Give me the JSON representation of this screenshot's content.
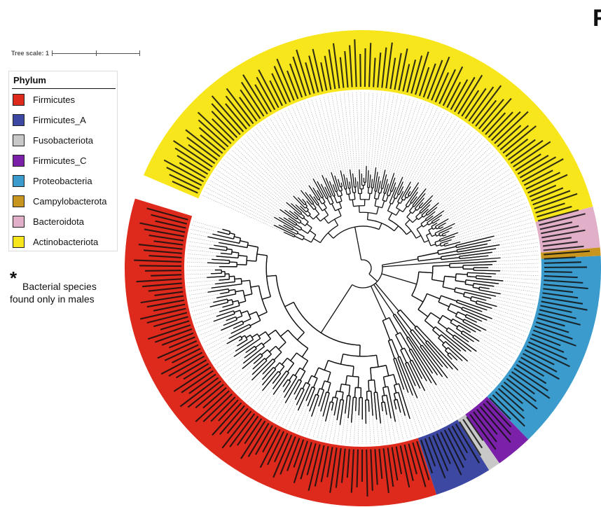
{
  "panel_letter": "F",
  "tree_scale": {
    "label": "Tree scale: 1"
  },
  "legend": {
    "title": "Phylum",
    "items": [
      {
        "label": "Firmicutes",
        "color": "#dd2a1c"
      },
      {
        "label": "Firmicutes_A",
        "color": "#3d48a2"
      },
      {
        "label": "Fusobacteriota",
        "color": "#c8c8c8"
      },
      {
        "label": "Firmicutes_C",
        "color": "#7b20a8"
      },
      {
        "label": "Proteobacteria",
        "color": "#3b9bcc"
      },
      {
        "label": "Campylobacterota",
        "color": "#c8961e"
      },
      {
        "label": "Bacteroidota",
        "color": "#e1b0c8"
      },
      {
        "label": "Actinobacteriota",
        "color": "#f8e61c"
      }
    ]
  },
  "note": {
    "star": "*",
    "line1": "Bacterial species",
    "line2": "found only in males"
  },
  "tree": {
    "sectors": [
      {
        "phylum": "Actinobacteriota",
        "start_deg": -157,
        "end_deg": -15,
        "color": "#f8e61c"
      },
      {
        "phylum": "Bacteroidota",
        "start_deg": -15,
        "end_deg": -5,
        "color": "#e1b0c8"
      },
      {
        "phylum": "Campylobacterota",
        "start_deg": -5,
        "end_deg": -3,
        "color": "#c8961e"
      },
      {
        "phylum": "Proteobacteria",
        "start_deg": -3,
        "end_deg": 46,
        "color": "#3b9bcc"
      },
      {
        "phylum": "Firmicutes_C",
        "start_deg": 46,
        "end_deg": 55,
        "color": "#7b20a8"
      },
      {
        "phylum": "Fusobacteriota",
        "start_deg": 55,
        "end_deg": 58,
        "color": "#c8c8c8"
      },
      {
        "phylum": "Firmicutes_A",
        "start_deg": 58,
        "end_deg": 72,
        "color": "#3d48a2"
      },
      {
        "phylum": "Firmicutes",
        "start_deg": 72,
        "end_deg": 197,
        "color": "#dd2a1c"
      }
    ]
  }
}
